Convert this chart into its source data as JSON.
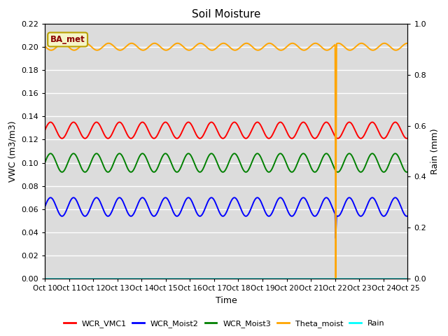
{
  "title": "Soil Moisture",
  "xlabel": "Time",
  "ylabel_left": "VWC (m3/m3)",
  "ylabel_right": "Rain (mm)",
  "xlim_days": 15,
  "ylim_left": [
    0.0,
    0.22
  ],
  "ylim_right": [
    0.0,
    1.0
  ],
  "x_tick_labels": [
    "Oct 10",
    "Oct 11",
    "Oct 12",
    "Oct 13",
    "Oct 14",
    "Oct 15",
    "Oct 16",
    "Oct 17",
    "Oct 18",
    "Oct 19",
    "Oct 20",
    "Oct 21",
    "Oct 22",
    "Oct 23",
    "Oct 24",
    "Oct 25"
  ],
  "background_color": "#dcdcdc",
  "legend_label": "BA_met",
  "series": [
    {
      "name": "WCR_VMC1",
      "color": "red",
      "base": 0.128,
      "amplitude": 0.007,
      "period": 0.95,
      "phase": 0.0
    },
    {
      "name": "WCR_Moist2",
      "color": "blue",
      "base": 0.062,
      "amplitude": 0.008,
      "period": 0.95,
      "phase": 0.0
    },
    {
      "name": "WCR_Moist3",
      "color": "green",
      "base": 0.1,
      "amplitude": 0.008,
      "period": 0.95,
      "phase": 0.0
    },
    {
      "name": "Theta_moist",
      "color": "orange",
      "base": 0.2,
      "amplitude": 0.003,
      "period": 0.95,
      "phase": 0.5
    }
  ],
  "spike_day": 12.0,
  "spikes": {
    "WCR_VMC1": {
      "min_val": 0.121
    },
    "WCR_Moist2": {
      "min_val": 0.035
    },
    "WCR_Moist3": {
      "min_val": 0.093
    },
    "Theta_moist": {
      "min_val": 0.0
    }
  },
  "rain_color": "cyan",
  "title_fontsize": 11,
  "axis_label_fontsize": 9,
  "tick_fontsize": 8,
  "linewidth": 1.4
}
